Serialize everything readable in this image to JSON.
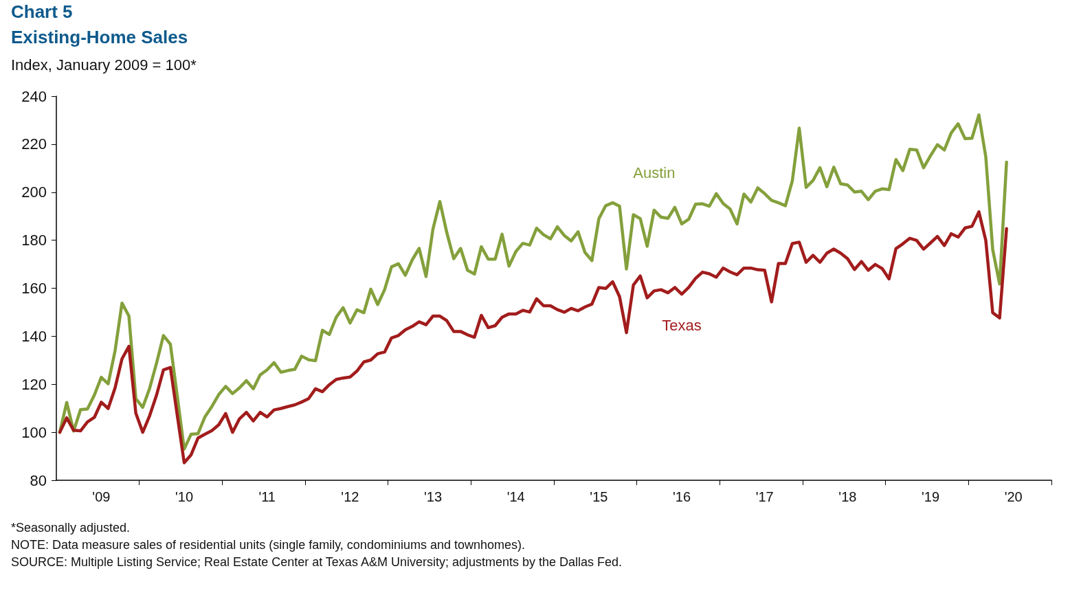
{
  "chart_data": {
    "type": "line",
    "title": "Chart 5",
    "subtitle": "Existing-Home Sales",
    "ylabel": "Index, January 2009 = 100*",
    "annotations": [
      "*Seasonally adjusted.",
      "NOTE: Data measure sales of residential units (single family, condominiums and townhomes).",
      "SOURCE: Multiple Listing Service; Real Estate Center at Texas A&M University; adjustments by the Dallas Fed."
    ],
    "categories": [
      null,
      null,
      null,
      null,
      null,
      null,
      "'09",
      null,
      null,
      null,
      null,
      null,
      null,
      null,
      null,
      null,
      null,
      null,
      "'10",
      null,
      null,
      null,
      null,
      null,
      null,
      null,
      null,
      null,
      null,
      null,
      "'11",
      null,
      null,
      null,
      null,
      null,
      null,
      null,
      null,
      null,
      null,
      null,
      "'12",
      null,
      null,
      null,
      null,
      null,
      null,
      null,
      null,
      null,
      null,
      null,
      "'13",
      null,
      null,
      null,
      null,
      null,
      null,
      null,
      null,
      null,
      null,
      null,
      "'14",
      null,
      null,
      null,
      null,
      null,
      null,
      null,
      null,
      null,
      null,
      null,
      "'15",
      null,
      null,
      null,
      null,
      null,
      null,
      null,
      null,
      null,
      null,
      null,
      "'16",
      null,
      null,
      null,
      null,
      null,
      null,
      null,
      null,
      null,
      null,
      null,
      "'17",
      null,
      null,
      null,
      null,
      null,
      null,
      null,
      null,
      null,
      null,
      null,
      "'18",
      null,
      null,
      null,
      null,
      null,
      null,
      null,
      null,
      null,
      null,
      null,
      "'19",
      null,
      null,
      null,
      null,
      null,
      null,
      null,
      null,
      null,
      null,
      null,
      "'20",
      null,
      null,
      null,
      null,
      null
    ],
    "series": [
      {
        "name": "Austin",
        "color": "#84a03c",
        "values": [
          100,
          112.4,
          100.5,
          109.4,
          109.7,
          115.5,
          122.9,
          120.2,
          134,
          153.8,
          148.4,
          114,
          110.4,
          118.3,
          128.8,
          140.3,
          136.7,
          115,
          93,
          99.2,
          99.4,
          106.4,
          110.7,
          115.7,
          119.1,
          116.1,
          118.5,
          121.5,
          118.1,
          123.9,
          126,
          129,
          125,
          125.7,
          126.2,
          131.7,
          130.2,
          129.8,
          142.5,
          140.7,
          147.9,
          151.9,
          145.5,
          151,
          149.8,
          159.6,
          153.2,
          159.4,
          168.9,
          170.2,
          165.4,
          171.8,
          176.6,
          164.9,
          184.7,
          196.1,
          183.2,
          172.3,
          176.6,
          167.5,
          165.9,
          177.3,
          172.1,
          172.1,
          182.5,
          169.2,
          175.3,
          178.7,
          178,
          185,
          182.3,
          180.6,
          185.6,
          182,
          179.7,
          183.5,
          174.9,
          171.5,
          188.9,
          194.4,
          195.6,
          194.2,
          168,
          190.6,
          189,
          177.5,
          192.5,
          189.6,
          189.1,
          193.7,
          186.8,
          188.7,
          195,
          195.2,
          194.2,
          199.4,
          195.3,
          193,
          186.8,
          199.2,
          195.9,
          201.8,
          199.4,
          196.6,
          195.6,
          194.4,
          204.7,
          226.7,
          202,
          204.9,
          210.2,
          202.3,
          210.4,
          203.5,
          203,
          200.1,
          200.4,
          196.9,
          200.4,
          201.4,
          201.1,
          213.6,
          209,
          217.9,
          217.6,
          210.2,
          215.2,
          219.8,
          217.6,
          224.7,
          228.5,
          222.3,
          222.5,
          232.2,
          214.7,
          176.1,
          161.8,
          212.5,
          null,
          null,
          null,
          null,
          null,
          null
        ]
      },
      {
        "name": "Texas",
        "color": "#a21c1c",
        "values": [
          100,
          106,
          100.8,
          100.6,
          104.3,
          106.2,
          112.5,
          109.9,
          118.5,
          130.6,
          135.8,
          108,
          100,
          106.9,
          115.5,
          126,
          127,
          107,
          87.3,
          90.6,
          97.6,
          99.2,
          100.7,
          103.1,
          107.8,
          100,
          105.6,
          108.3,
          104.7,
          108.3,
          106.4,
          109.3,
          109.9,
          110.7,
          111.4,
          112.6,
          114,
          118.1,
          116.9,
          119.8,
          122,
          122.6,
          123,
          125.5,
          129.3,
          130.1,
          132.7,
          133.4,
          139.3,
          140.3,
          142.7,
          144.1,
          146,
          144.8,
          148.4,
          148.4,
          146.5,
          142,
          142,
          140.6,
          139.6,
          148.7,
          143.6,
          144.4,
          147.9,
          149.3,
          149.3,
          150.8,
          150.1,
          155.6,
          152.7,
          152.7,
          151.1,
          150,
          151.6,
          150.6,
          152.2,
          153.4,
          160.3,
          159.9,
          162.7,
          156.5,
          141.5,
          161.3,
          165.1,
          156,
          158.9,
          159.4,
          158.1,
          160.3,
          157.5,
          160.3,
          164.1,
          166.7,
          166,
          164.6,
          168.4,
          166.8,
          165.6,
          168.4,
          168.4,
          167.7,
          167.5,
          154.3,
          170.3,
          170.3,
          178.6,
          179.2,
          170.8,
          173.7,
          170.8,
          174.6,
          176.3,
          174.6,
          172.3,
          167.8,
          171.1,
          167.5,
          169.9,
          168.2,
          163.9,
          176.5,
          178.5,
          180.8,
          179.9,
          176.3,
          178.9,
          181.6,
          177.8,
          182.7,
          181.3,
          185.1,
          185.8,
          191.8,
          179.9,
          149.8,
          147.6,
          184.8,
          null,
          null,
          null,
          null,
          null,
          null
        ]
      }
    ],
    "ylim": [
      80,
      240
    ],
    "yticks": [
      80,
      100,
      120,
      140,
      160,
      180,
      200,
      220,
      240
    ],
    "grid": false,
    "legend": false
  }
}
